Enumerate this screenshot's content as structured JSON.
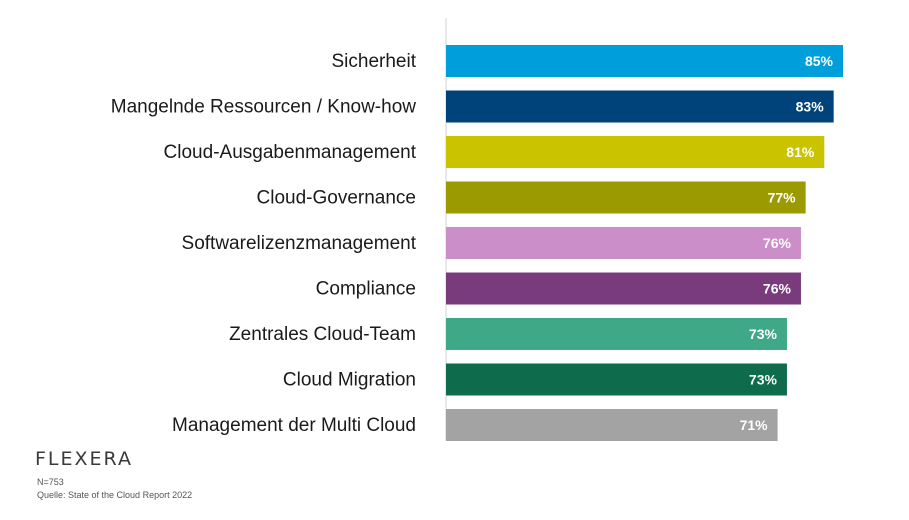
{
  "chart_data": {
    "type": "bar",
    "orientation": "horizontal",
    "categories": [
      "Sicherheit",
      "Mangelnde Ressourcen / Know-how",
      "Cloud-Ausgabenmanagement",
      "Cloud-Governance",
      "Softwarelizenzmanagement",
      "Compliance",
      "Zentrales Cloud-Team",
      "Cloud Migration",
      "Management der Multi Cloud"
    ],
    "values": [
      85,
      83,
      81,
      77,
      76,
      76,
      73,
      73,
      71
    ],
    "value_labels": [
      "85%",
      "83%",
      "81%",
      "77%",
      "76%",
      "76%",
      "73%",
      "73%",
      "71%"
    ],
    "colors": [
      "#009fdb",
      "#00427a",
      "#c9c300",
      "#9b9a00",
      "#cc8ec8",
      "#7a3b7c",
      "#3ea887",
      "#0e6b4b",
      "#a3a3a3"
    ],
    "xlim": [
      0,
      100
    ],
    "grid": false,
    "legend": "none"
  },
  "logo": {
    "text": "FLEXERA"
  },
  "footnotes": {
    "n": "N=753",
    "source": "Quelle: State of the Cloud Report 2022"
  }
}
